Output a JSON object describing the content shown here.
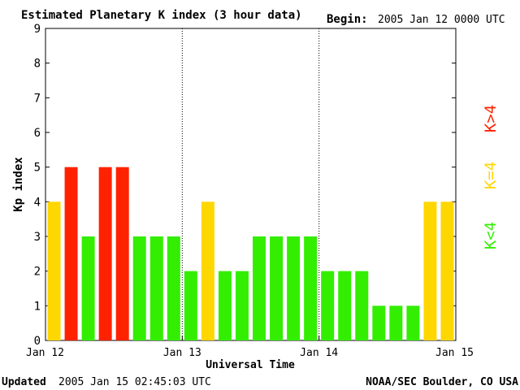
{
  "header": {
    "title": "Estimated Planetary K index (3 hour data)",
    "begin_label": "Begin:",
    "begin_value": "2005 Jan 12 0000 UTC"
  },
  "footer": {
    "updated_label": "Updated",
    "updated_value": "2005 Jan 15 02:45:03 UTC",
    "source": "NOAA/SEC Boulder, CO USA"
  },
  "legend": {
    "high_label": "K>4",
    "equal_label": "K=4",
    "low_label": "K<4"
  },
  "colors": {
    "low": "#33ee00",
    "equal": "#ffd700",
    "high": "#ff2200"
  },
  "chart_data": {
    "type": "bar",
    "title": "Estimated Planetary K index (3 hour data)",
    "xlabel": "Universal Time",
    "ylabel": "Kp index",
    "ylim": [
      0,
      9
    ],
    "yticks": [
      0,
      1,
      2,
      3,
      4,
      5,
      6,
      7,
      8,
      9
    ],
    "xtick_labels": [
      "Jan 12",
      "Jan 13",
      "Jan 14",
      "Jan 15"
    ],
    "interval_hours": 3,
    "values": [
      4,
      5,
      3,
      5,
      5,
      3,
      3,
      3,
      2,
      4,
      2,
      2,
      3,
      3,
      3,
      3,
      2,
      2,
      2,
      1,
      1,
      1,
      4,
      4
    ]
  }
}
